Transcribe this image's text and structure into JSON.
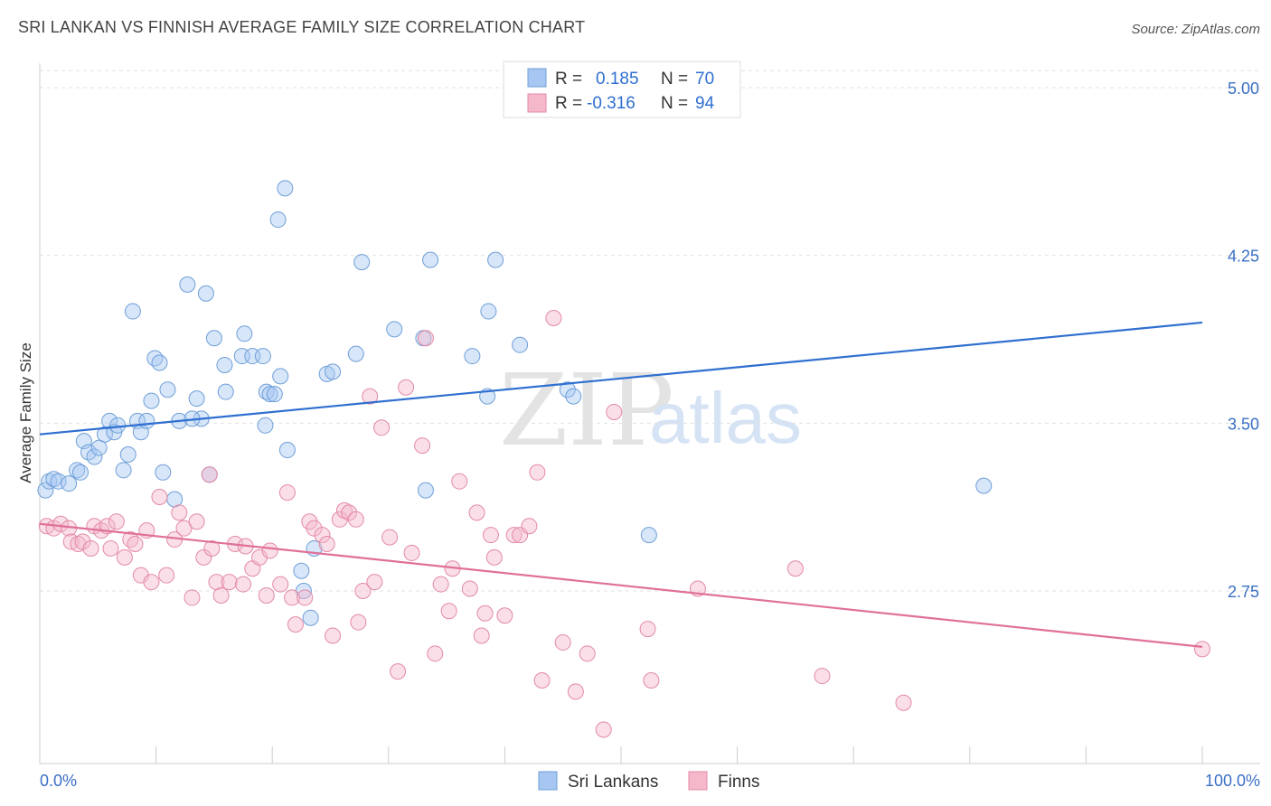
{
  "header": {
    "title": "SRI LANKAN VS FINNISH AVERAGE FAMILY SIZE CORRELATION CHART",
    "source": "Source: ZipAtlas.com"
  },
  "legend": {
    "rows": [
      {
        "r_label": "R =",
        "r_value": "0.185",
        "n_label": "N =",
        "n_value": "70",
        "color": "#a7c7f2"
      },
      {
        "r_label": "R =",
        "r_value": "-0.316",
        "n_label": "N =",
        "n_value": "94",
        "color": "#f5b8cb"
      }
    ],
    "bottom": [
      {
        "name": "Sri Lankans",
        "color": "#a7c7f2"
      },
      {
        "name": "Finns",
        "color": "#f5b8cb"
      }
    ]
  },
  "watermark": {
    "zip": "ZIP",
    "atlas": "atlas"
  },
  "chart_data": {
    "type": "scatter",
    "title": "SRI LANKAN VS FINNISH AVERAGE FAMILY SIZE CORRELATION CHART",
    "xlabel": "",
    "ylabel": "Average Family Size",
    "x_tick_labels": [
      "0.0%",
      "100.0%"
    ],
    "y_ticks": [
      2.75,
      3.5,
      4.25,
      5.0
    ],
    "y_tick_labels": [
      "2.75",
      "3.50",
      "4.25",
      "5.00"
    ],
    "xlim": [
      0,
      100
    ],
    "ylim": [
      2.02,
      5.12
    ],
    "grid": true,
    "legend_position": "top-center",
    "series": [
      {
        "name": "Sri Lankans",
        "color": "#a7c7f2",
        "stroke": "#6f9fd8",
        "trend": {
          "x": [
            0,
            100
          ],
          "y": [
            3.45,
            3.95
          ],
          "color": "#2f6fd0"
        },
        "points": [
          [
            0.5,
            3.2
          ],
          [
            0.8,
            3.24
          ],
          [
            1.2,
            3.25
          ],
          [
            1.6,
            3.24
          ],
          [
            2.5,
            3.23
          ],
          [
            3.2,
            3.29
          ],
          [
            3.5,
            3.28
          ],
          [
            3.8,
            3.42
          ],
          [
            4.2,
            3.37
          ],
          [
            4.7,
            3.35
          ],
          [
            5.1,
            3.39
          ],
          [
            5.6,
            3.45
          ],
          [
            6.0,
            3.51
          ],
          [
            6.4,
            3.46
          ],
          [
            6.7,
            3.49
          ],
          [
            7.2,
            3.29
          ],
          [
            7.6,
            3.36
          ],
          [
            8.0,
            4.0
          ],
          [
            8.4,
            3.51
          ],
          [
            8.7,
            3.46
          ],
          [
            9.2,
            3.51
          ],
          [
            9.6,
            3.6
          ],
          [
            9.9,
            3.79
          ],
          [
            10.3,
            3.77
          ],
          [
            10.6,
            3.28
          ],
          [
            11.0,
            3.65
          ],
          [
            11.6,
            3.16
          ],
          [
            12.0,
            3.51
          ],
          [
            12.7,
            4.12
          ],
          [
            13.5,
            3.61
          ],
          [
            13.9,
            3.52
          ],
          [
            14.3,
            4.08
          ],
          [
            14.6,
            3.27
          ],
          [
            15.0,
            3.88
          ],
          [
            15.9,
            3.76
          ],
          [
            16.0,
            3.64
          ],
          [
            17.4,
            3.8
          ],
          [
            17.6,
            3.9
          ],
          [
            18.3,
            3.8
          ],
          [
            19.2,
            3.8
          ],
          [
            19.4,
            3.49
          ],
          [
            19.5,
            3.64
          ],
          [
            19.8,
            3.63
          ],
          [
            20.5,
            4.41
          ],
          [
            20.7,
            3.71
          ],
          [
            21.1,
            4.55
          ],
          [
            21.3,
            3.38
          ],
          [
            22.5,
            2.84
          ],
          [
            22.7,
            2.75
          ],
          [
            23.3,
            2.63
          ],
          [
            23.6,
            2.94
          ],
          [
            24.7,
            3.72
          ],
          [
            25.2,
            3.73
          ],
          [
            27.2,
            3.81
          ],
          [
            27.7,
            4.22
          ],
          [
            30.5,
            3.92
          ],
          [
            33.0,
            3.88
          ],
          [
            33.2,
            3.2
          ],
          [
            33.6,
            4.23
          ],
          [
            37.2,
            3.8
          ],
          [
            38.5,
            3.62
          ],
          [
            38.6,
            4.0
          ],
          [
            39.2,
            4.23
          ],
          [
            41.3,
            3.85
          ],
          [
            45.4,
            3.65
          ],
          [
            45.9,
            3.62
          ],
          [
            52.4,
            3.0
          ],
          [
            81.2,
            3.22
          ],
          [
            20.2,
            3.63
          ],
          [
            13.1,
            3.52
          ]
        ]
      },
      {
        "name": "Finns",
        "color": "#f5b8cb",
        "stroke": "#e38aa6",
        "trend": {
          "x": [
            0,
            100
          ],
          "y": [
            3.05,
            2.5
          ],
          "color": "#e0709a"
        },
        "points": [
          [
            0.6,
            3.04
          ],
          [
            1.2,
            3.03
          ],
          [
            1.8,
            3.05
          ],
          [
            2.5,
            3.03
          ],
          [
            2.7,
            2.97
          ],
          [
            3.3,
            2.96
          ],
          [
            3.7,
            2.97
          ],
          [
            4.4,
            2.94
          ],
          [
            4.7,
            3.04
          ],
          [
            5.3,
            3.02
          ],
          [
            5.8,
            3.04
          ],
          [
            6.1,
            2.94
          ],
          [
            6.6,
            3.06
          ],
          [
            7.3,
            2.9
          ],
          [
            7.8,
            2.98
          ],
          [
            8.2,
            2.96
          ],
          [
            8.7,
            2.82
          ],
          [
            9.2,
            3.02
          ],
          [
            9.6,
            2.79
          ],
          [
            10.3,
            3.17
          ],
          [
            10.9,
            2.82
          ],
          [
            11.6,
            2.98
          ],
          [
            12.0,
            3.1
          ],
          [
            12.4,
            3.03
          ],
          [
            13.1,
            2.72
          ],
          [
            13.5,
            3.06
          ],
          [
            14.1,
            2.9
          ],
          [
            14.6,
            3.27
          ],
          [
            15.2,
            2.79
          ],
          [
            15.6,
            2.73
          ],
          [
            16.3,
            2.79
          ],
          [
            16.8,
            2.96
          ],
          [
            17.5,
            2.78
          ],
          [
            17.7,
            2.95
          ],
          [
            18.3,
            2.85
          ],
          [
            18.9,
            2.9
          ],
          [
            19.5,
            2.73
          ],
          [
            19.8,
            2.93
          ],
          [
            20.7,
            2.78
          ],
          [
            21.3,
            3.19
          ],
          [
            21.7,
            2.72
          ],
          [
            22.0,
            2.6
          ],
          [
            22.8,
            2.72
          ],
          [
            23.2,
            3.06
          ],
          [
            23.6,
            3.03
          ],
          [
            24.3,
            3.0
          ],
          [
            24.7,
            2.96
          ],
          [
            25.2,
            2.55
          ],
          [
            25.8,
            3.07
          ],
          [
            26.2,
            3.11
          ],
          [
            26.6,
            3.1
          ],
          [
            27.4,
            2.61
          ],
          [
            27.8,
            2.75
          ],
          [
            28.4,
            3.62
          ],
          [
            28.8,
            2.79
          ],
          [
            29.4,
            3.48
          ],
          [
            30.1,
            2.99
          ],
          [
            30.8,
            2.39
          ],
          [
            31.5,
            3.66
          ],
          [
            32.0,
            2.92
          ],
          [
            32.9,
            3.4
          ],
          [
            33.2,
            3.88
          ],
          [
            34.0,
            2.47
          ],
          [
            34.5,
            2.78
          ],
          [
            35.2,
            2.66
          ],
          [
            35.5,
            2.85
          ],
          [
            36.1,
            3.24
          ],
          [
            37.0,
            2.76
          ],
          [
            37.6,
            3.1
          ],
          [
            38.0,
            2.55
          ],
          [
            38.3,
            2.65
          ],
          [
            38.8,
            3.0
          ],
          [
            39.1,
            2.9
          ],
          [
            40.0,
            2.64
          ],
          [
            40.8,
            3.0
          ],
          [
            41.3,
            3.0
          ],
          [
            42.1,
            3.04
          ],
          [
            42.8,
            3.28
          ],
          [
            43.2,
            2.35
          ],
          [
            44.2,
            3.97
          ],
          [
            45.0,
            2.52
          ],
          [
            46.1,
            2.3
          ],
          [
            47.1,
            2.47
          ],
          [
            48.5,
            2.13
          ],
          [
            49.4,
            3.55
          ],
          [
            52.3,
            2.58
          ],
          [
            52.6,
            2.35
          ],
          [
            56.6,
            2.76
          ],
          [
            65.0,
            2.85
          ],
          [
            67.3,
            2.37
          ],
          [
            74.3,
            2.25
          ],
          [
            100.0,
            2.49
          ],
          [
            27.2,
            3.07
          ],
          [
            14.8,
            2.94
          ]
        ]
      }
    ]
  }
}
